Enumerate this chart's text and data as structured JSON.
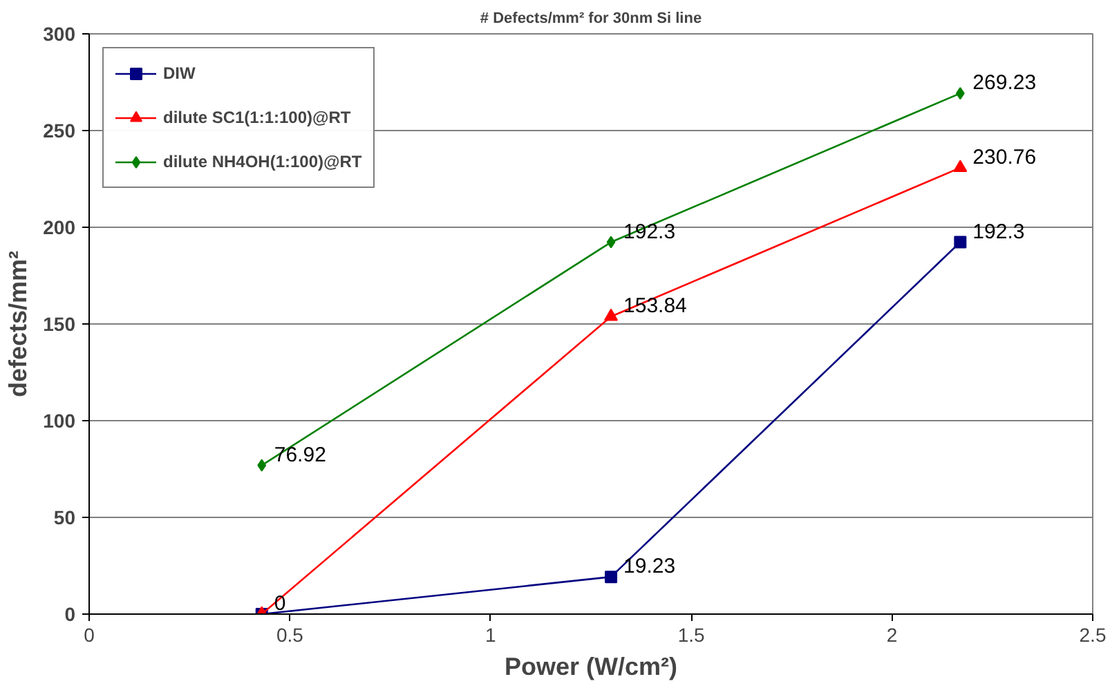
{
  "chart_data": {
    "type": "line",
    "title": "# Defects/mm² for 30nm Si line",
    "xlabel": "Power (W/cm²)",
    "ylabel": "defects/mm²",
    "x": [
      0.43,
      1.3,
      2.17
    ],
    "series": [
      {
        "name": "DIW",
        "color": "#000080",
        "marker": "square",
        "values": [
          0,
          19.23,
          192.3
        ],
        "value_labels": [
          null,
          "19.23",
          "192.3"
        ]
      },
      {
        "name": "dilute SC1(1:1:100)@RT",
        "color": "#ff0000",
        "marker": "triangle",
        "values": [
          0,
          153.84,
          230.76
        ],
        "value_labels": [
          "0",
          "153.84",
          "230.76"
        ]
      },
      {
        "name": "dilute NH4OH(1:100)@RT",
        "color": "#008000",
        "marker": "diamond",
        "values": [
          76.92,
          192.3,
          269.23
        ],
        "value_labels": [
          "76.92",
          "192.3",
          "269.23"
        ]
      }
    ],
    "xlim": [
      0,
      2.5
    ],
    "xticks": [
      0,
      0.5,
      1,
      1.5,
      2,
      2.5
    ],
    "ylim": [
      0,
      300
    ],
    "yticks": [
      0,
      50,
      100,
      150,
      200,
      250,
      300
    ],
    "grid": "y",
    "legend": "top left",
    "line_style": "solid"
  }
}
